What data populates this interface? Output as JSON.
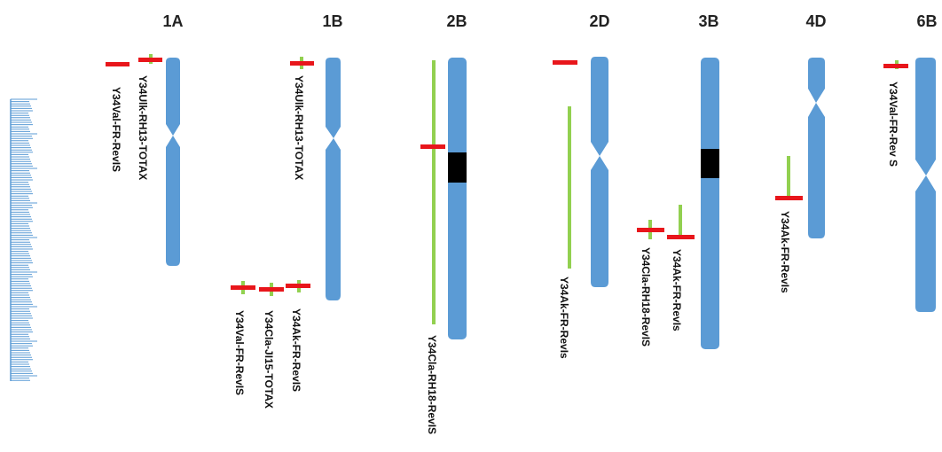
{
  "colors": {
    "chromosome": "#5b9bd5",
    "centromere_block": "#000000",
    "marker": "#e8161b",
    "interval": "#92d050",
    "scale": "#5b9bd5",
    "text": "#111111"
  },
  "chromosomes": [
    {
      "label": "1A",
      "has_black_block": false
    },
    {
      "label": "1B",
      "has_black_block": false
    },
    {
      "label": "2B",
      "has_black_block": true
    },
    {
      "label": "2D",
      "has_black_block": false
    },
    {
      "label": "3B",
      "has_black_block": true
    },
    {
      "label": "4D",
      "has_black_block": false
    },
    {
      "label": "6B",
      "has_black_block": false
    }
  ],
  "qtls": [
    {
      "id": "q1",
      "label": "Y34Val-FR-RevIS"
    },
    {
      "id": "q2",
      "label": "Y34Ulk-RH13-TOTAX"
    },
    {
      "id": "q3",
      "label": "Y34Ulk-RH13-TOTAX"
    },
    {
      "id": "q4",
      "label": "Y34Val-FR-RevIS"
    },
    {
      "id": "q5",
      "label": "Y34Cla-JI15-TOTAX"
    },
    {
      "id": "q6",
      "label": "Y34Ak-FR-RevIS"
    },
    {
      "id": "q7",
      "label": "Y34Cla-RH18-RevIS"
    },
    {
      "id": "q8",
      "label": "Y34Ak-FR-RevIs"
    },
    {
      "id": "q9",
      "label": "Y34Cla-RH18-RevIS"
    },
    {
      "id": "q10",
      "label": "Y34Ak-FR-RevIs"
    },
    {
      "id": "q11",
      "label": "Y34Ak-FR-RevIs"
    },
    {
      "id": "q12",
      "label": "Y34Val-FR-Rev S"
    }
  ]
}
